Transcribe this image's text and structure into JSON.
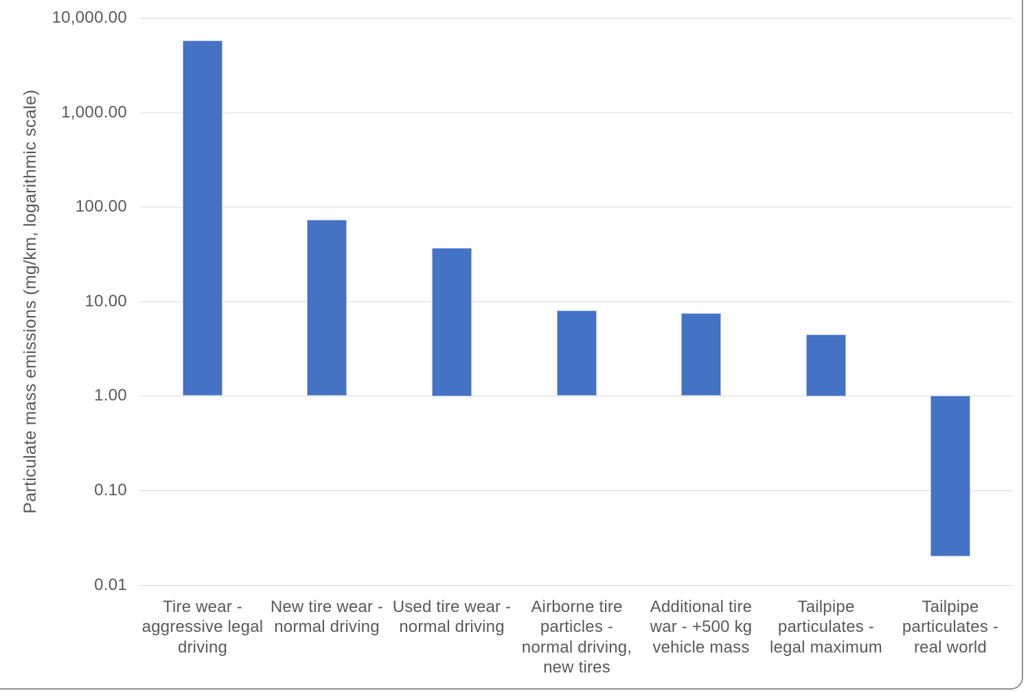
{
  "frame": {
    "border_color": "#909090"
  },
  "chart_data": {
    "type": "bar",
    "title": "",
    "xlabel": "",
    "ylabel": "Particulate mass emissions (mg/km, logarithmic scale)",
    "scale": "logarithmic",
    "ylim": [
      0.01,
      10000
    ],
    "bar_baseline": 1,
    "grid": true,
    "legend": false,
    "bar_color": "#4472c4",
    "gridline_color": "#d9d9d9",
    "text_color": "#595959",
    "ytick_values": [
      10000,
      1000,
      100,
      10,
      1,
      0.1,
      0.01
    ],
    "ytick_labels": [
      "10,000.00",
      "1,000.00",
      "100.00",
      "10.00",
      "1.00",
      "0.10",
      "0.01"
    ],
    "categories": [
      "Tire wear - aggressive legal driving",
      "New tire wear - normal driving",
      "Used tire wear - normal driving",
      "Airborne tire particles - normal driving, new tires",
      "Additional tire war - +500 kg vehicle mass",
      "Tailpipe particulates - legal maximum",
      "Tailpipe particulates - real world"
    ],
    "categories_display": [
      "Tire wear -\naggressive legal\ndriving",
      "New tire wear -\nnormal driving",
      "Used tire wear -\nnormal driving",
      "Airborne tire\nparticles -\nnormal driving,\nnew tires",
      "Additional tire\nwar - +500 kg\nvehicle mass",
      "Tailpipe\nparticulates -\nlegal maximum",
      "Tailpipe\nparticulates -\nreal world"
    ],
    "values": [
      5760,
      73,
      37,
      8,
      7.5,
      4.5,
      0.02
    ]
  }
}
